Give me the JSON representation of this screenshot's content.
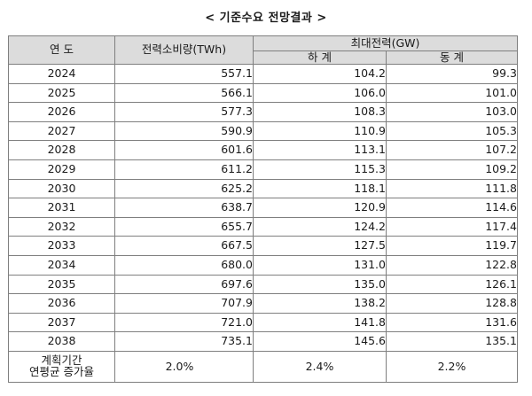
{
  "title": "< 기준수요 전망결과 >",
  "headers": {
    "year": "연  도",
    "consumption": "전력소비량(TWh)",
    "peak": "최대전력(GW)",
    "summer": "하  계",
    "winter": "동  계"
  },
  "rows": [
    {
      "year": "2024",
      "consumption": "557.1",
      "summer": "104.2",
      "winter": "99.3"
    },
    {
      "year": "2025",
      "consumption": "566.1",
      "summer": "106.0",
      "winter": "101.0"
    },
    {
      "year": "2026",
      "consumption": "577.3",
      "summer": "108.3",
      "winter": "103.0"
    },
    {
      "year": "2027",
      "consumption": "590.9",
      "summer": "110.9",
      "winter": "105.3"
    },
    {
      "year": "2028",
      "consumption": "601.6",
      "summer": "113.1",
      "winter": "107.2"
    },
    {
      "year": "2029",
      "consumption": "611.2",
      "summer": "115.3",
      "winter": "109.2"
    },
    {
      "year": "2030",
      "consumption": "625.2",
      "summer": "118.1",
      "winter": "111.8"
    },
    {
      "year": "2031",
      "consumption": "638.7",
      "summer": "120.9",
      "winter": "114.6"
    },
    {
      "year": "2032",
      "consumption": "655.7",
      "summer": "124.2",
      "winter": "117.4"
    },
    {
      "year": "2033",
      "consumption": "667.5",
      "summer": "127.5",
      "winter": "119.7"
    },
    {
      "year": "2034",
      "consumption": "680.0",
      "summer": "131.0",
      "winter": "122.8"
    },
    {
      "year": "2035",
      "consumption": "697.6",
      "summer": "135.0",
      "winter": "126.1"
    },
    {
      "year": "2036",
      "consumption": "707.9",
      "summer": "138.2",
      "winter": "128.8"
    },
    {
      "year": "2037",
      "consumption": "721.0",
      "summer": "141.8",
      "winter": "131.6"
    },
    {
      "year": "2038",
      "consumption": "735.1",
      "summer": "145.6",
      "winter": "135.1"
    }
  ],
  "cagr": {
    "label_line1": "계획기간",
    "label_line2": "연평균 증가율",
    "consumption": "2.0%",
    "summer": "2.4%",
    "winter": "2.2%"
  },
  "colors": {
    "header_bg": "#dcdcdc",
    "border": "#7f7f7f"
  }
}
